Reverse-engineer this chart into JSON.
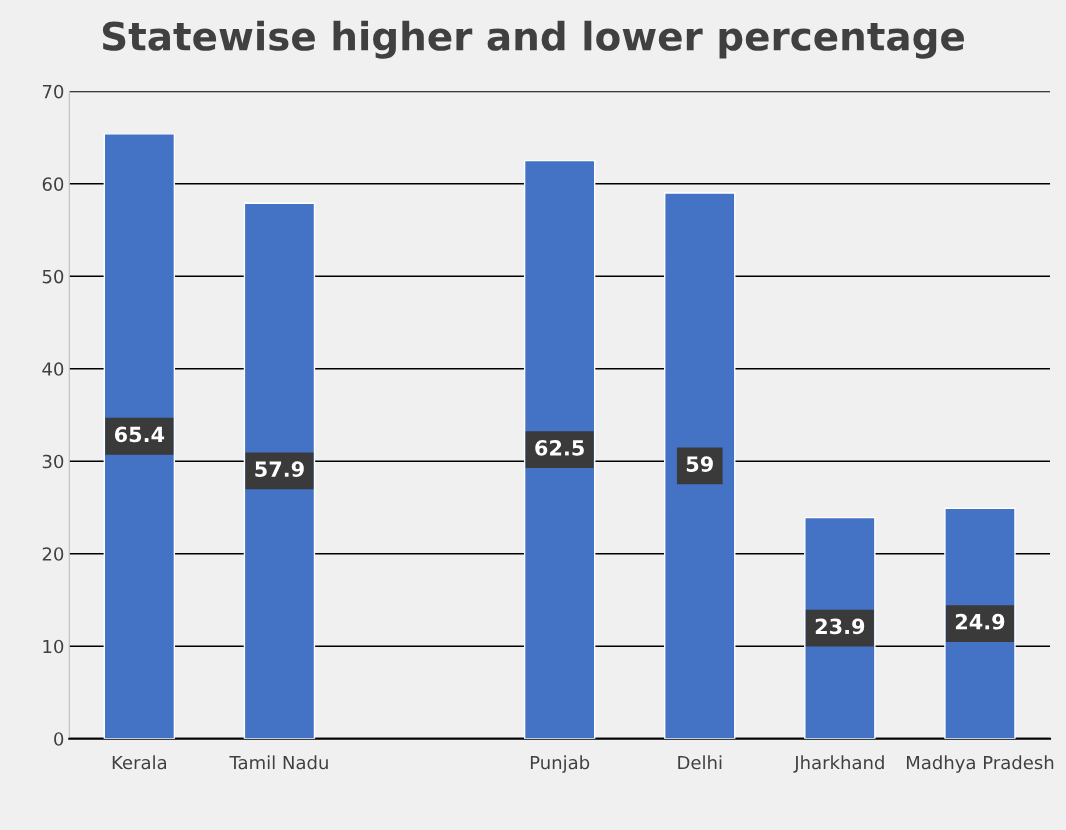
{
  "chart_data": {
    "type": "bar",
    "title": "Statewise higher and lower percentage",
    "categories": [
      "Kerala",
      "Tamil Nadu",
      null,
      "Punjab",
      "Delhi",
      "Jharkhand",
      "Madhya Pradesh"
    ],
    "values": [
      65.4,
      57.9,
      null,
      62.5,
      59,
      23.9,
      24.9
    ],
    "color": "#4472c4",
    "ylim": [
      0,
      70
    ],
    "yticks": [
      0,
      10,
      20,
      30,
      40,
      50,
      60,
      70
    ],
    "grid": "y",
    "data_labels": true,
    "legend": false
  }
}
